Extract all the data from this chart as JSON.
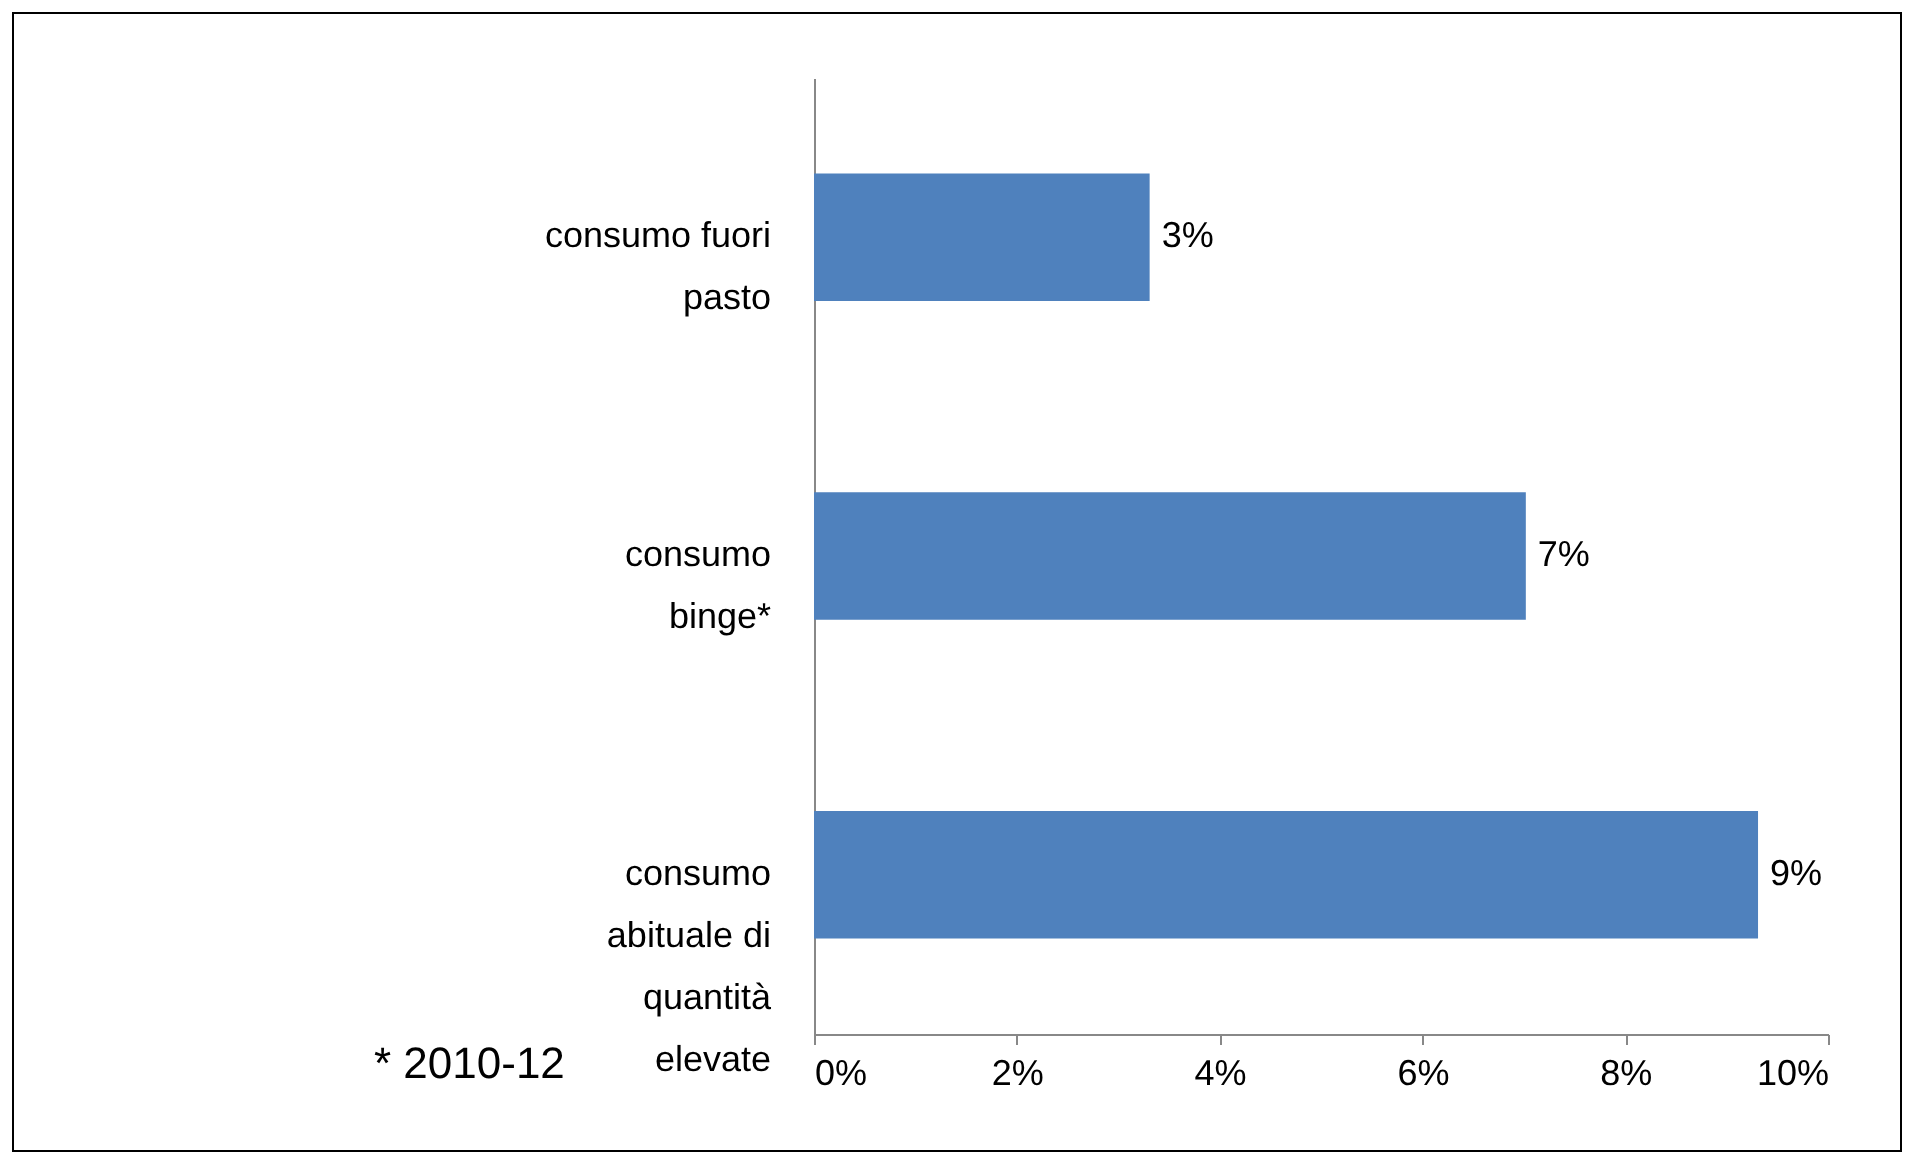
{
  "chart_data": {
    "type": "bar",
    "orientation": "horizontal",
    "categories": [
      "consumo fuori pasto",
      "consumo binge*",
      "consumo abituale di quantità elevate"
    ],
    "values": [
      3.31,
      7.02,
      9.31
    ],
    "value_labels": [
      "3%",
      "7%",
      "9%"
    ],
    "color": "#4f81bd",
    "xlim": [
      0,
      10
    ],
    "xticks": [
      {
        "value": 0,
        "label": "0%"
      },
      {
        "value": 2,
        "label": "2%"
      },
      {
        "value": 4,
        "label": "4%"
      },
      {
        "value": 6,
        "label": "6%"
      },
      {
        "value": 8,
        "label": "8%"
      },
      {
        "value": 10,
        "label": "10%"
      }
    ],
    "grid": false,
    "annotations": [
      "* 2010-12"
    ]
  }
}
